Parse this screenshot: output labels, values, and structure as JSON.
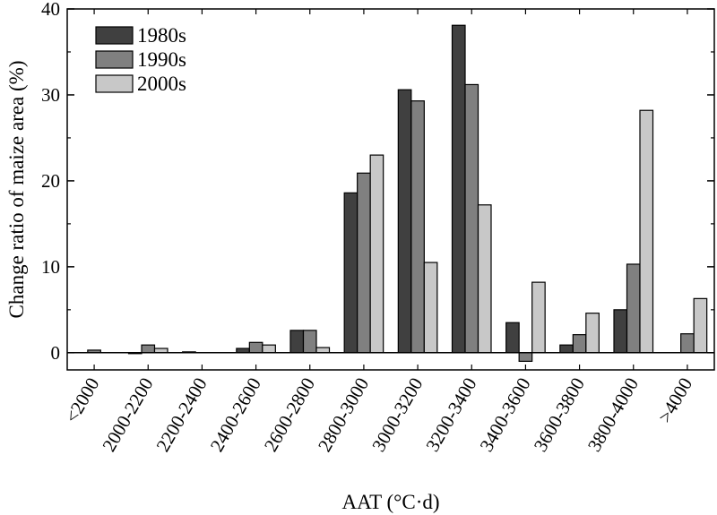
{
  "chart_data": {
    "type": "bar",
    "xlabel": "AAT (°C·d)",
    "ylabel": "Change ratio of maize area (%)",
    "ylim": [
      -2,
      40
    ],
    "yticks": [
      0,
      10,
      20,
      30,
      40
    ],
    "categories": [
      "<2000",
      "2000-2200",
      "2200-2400",
      "2400-2600",
      "2600-2800",
      "2800-3000",
      "3000-3200",
      "3200-3400",
      "3400-3600",
      "3600-3800",
      "3800-4000",
      ">4000"
    ],
    "series": [
      {
        "name": "1980s",
        "color": "#404040",
        "values": [
          0,
          -0.1,
          0.1,
          0.5,
          2.6,
          18.6,
          30.6,
          38.1,
          3.5,
          0.9,
          5.0,
          0
        ]
      },
      {
        "name": "1990s",
        "color": "#808080",
        "values": [
          0.3,
          0.9,
          0,
          1.2,
          2.6,
          20.9,
          29.3,
          31.2,
          -1.0,
          2.1,
          10.3,
          2.2
        ]
      },
      {
        "name": "2000s",
        "color": "#c8c8c8",
        "values": [
          0,
          0.5,
          0,
          0.9,
          0.6,
          23.0,
          10.5,
          17.2,
          8.2,
          4.6,
          28.2,
          6.3
        ]
      }
    ],
    "grid": false,
    "legend_position": "top-left"
  }
}
